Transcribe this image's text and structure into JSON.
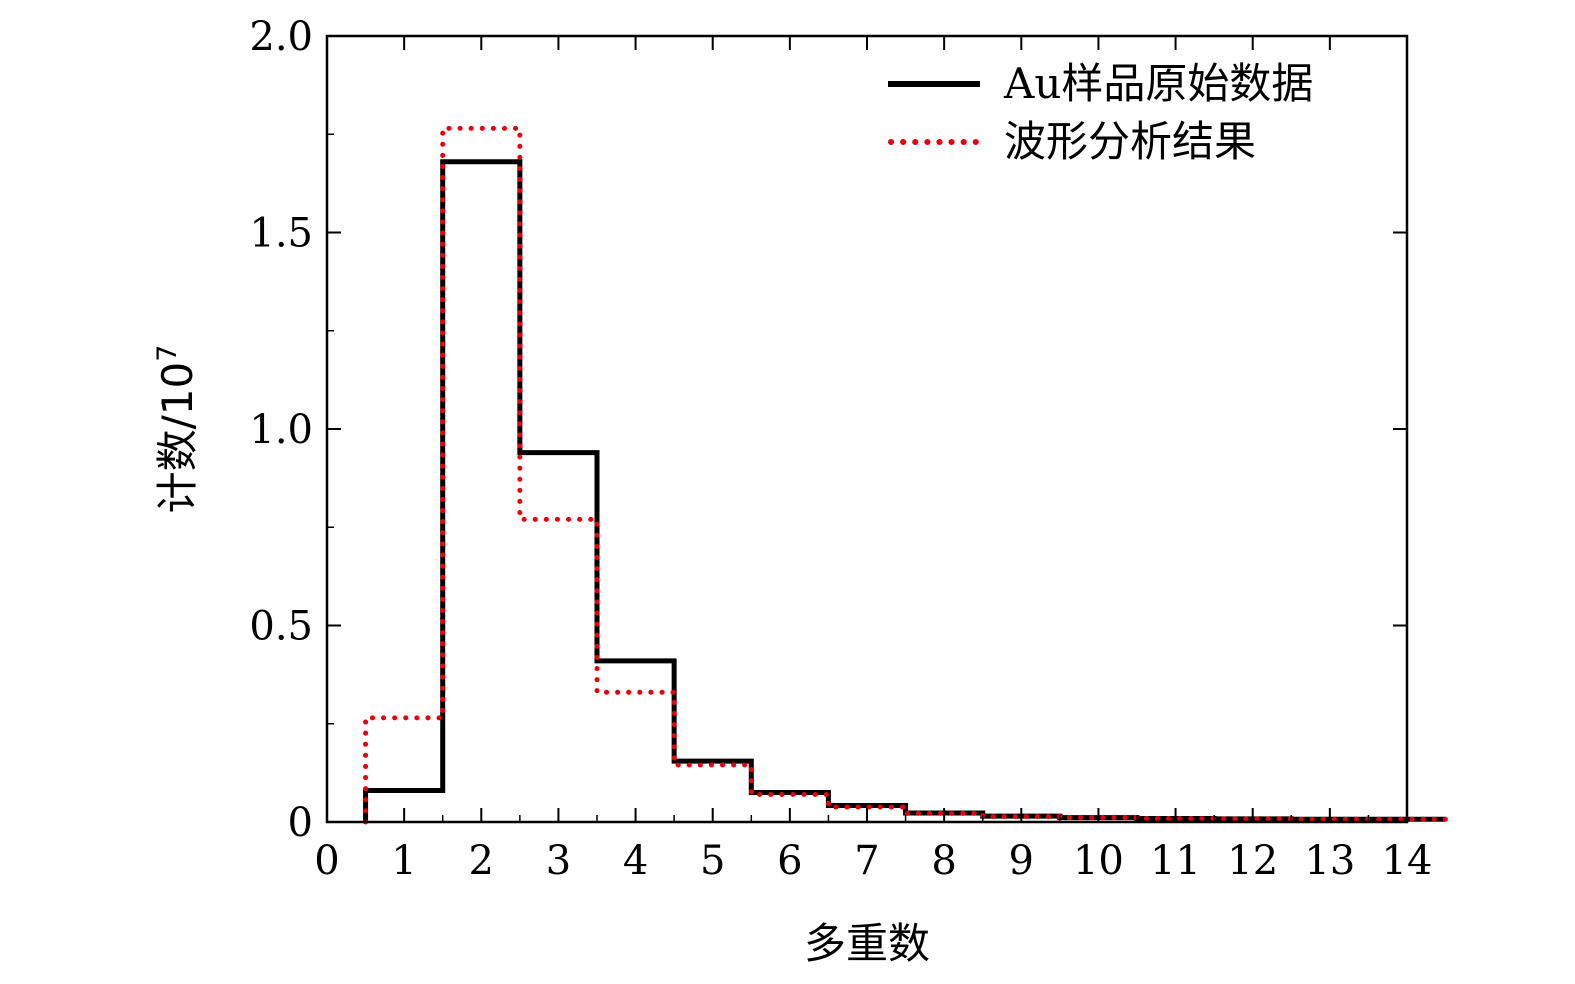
{
  "chart_data": {
    "type": "line",
    "style": "step-histogram",
    "xlabel": "多重数",
    "ylabel": "计数/10",
    "ylabel_exponent": "7",
    "xlim": [
      0,
      14
    ],
    "ylim": [
      0,
      2.0
    ],
    "x_ticks": [
      "0",
      "1",
      "2",
      "3",
      "4",
      "5",
      "6",
      "7",
      "8",
      "9",
      "10",
      "11",
      "12",
      "13",
      "14"
    ],
    "y_ticks": [
      "0",
      "0.5",
      "1.0",
      "1.5",
      "2.0"
    ],
    "legend_position": "top-right",
    "grid": false,
    "bins": [
      1,
      2,
      3,
      4,
      5,
      6,
      7,
      8,
      9,
      10,
      11,
      12,
      13,
      14
    ],
    "series": [
      {
        "name": "Au样品原始数据",
        "color": "#000000",
        "line_style": "solid",
        "values": [
          0.08,
          1.68,
          0.94,
          0.41,
          0.155,
          0.075,
          0.042,
          0.023,
          0.015,
          0.011,
          0.009,
          0.008,
          0.007,
          0.007
        ]
      },
      {
        "name": "波形分析结果",
        "color": "#e8000b",
        "line_style": "dotted",
        "values": [
          0.265,
          1.765,
          0.77,
          0.33,
          0.145,
          0.07,
          0.038,
          0.022,
          0.014,
          0.011,
          0.009,
          0.008,
          0.007,
          0.007
        ]
      }
    ]
  }
}
